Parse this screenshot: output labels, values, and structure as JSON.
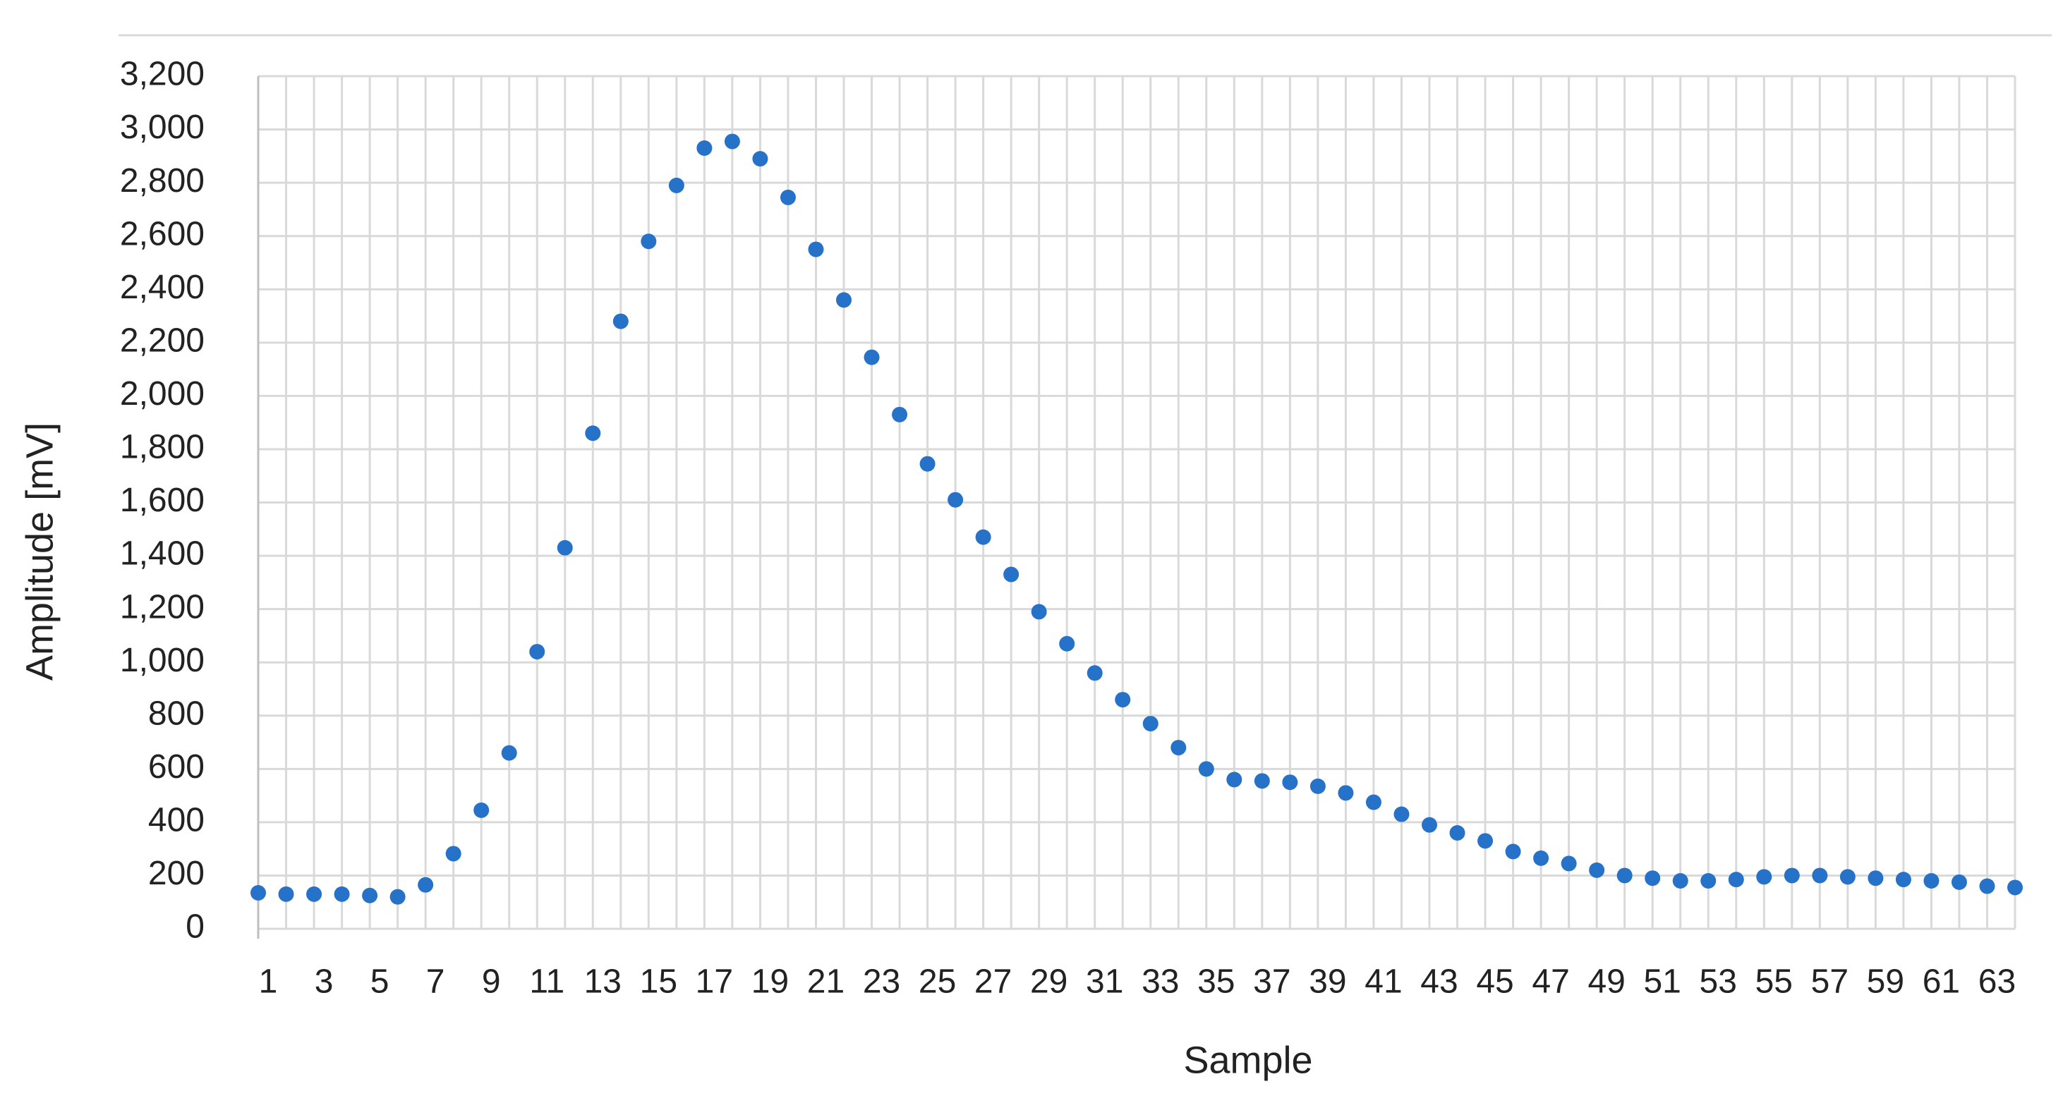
{
  "chart_data": {
    "type": "scatter",
    "x_label": "Sample",
    "y_label": "Amplitude [mV]",
    "categories": [
      "1",
      null,
      "3",
      null,
      "5",
      null,
      "7",
      null,
      "9",
      null,
      "11",
      null,
      "13",
      null,
      "15",
      null,
      "17",
      null,
      "19",
      null,
      "21",
      null,
      "23",
      null,
      "25",
      null,
      "27",
      null,
      "29",
      null,
      "31",
      null,
      "33",
      null,
      "35",
      null,
      "37",
      null,
      "39",
      null,
      "41",
      null,
      "43",
      null,
      "45",
      null,
      "47",
      null,
      "49",
      null,
      "51",
      null,
      "53",
      null,
      "55",
      null,
      "57",
      null,
      "59",
      null,
      "61",
      null,
      "63",
      null
    ],
    "series": [
      {
        "name": "Amplitude",
        "color": "#2672c8",
        "values": [
          135,
          130,
          130,
          130,
          125,
          120,
          165,
          282,
          445,
          660,
          1040,
          1430,
          1860,
          2280,
          2580,
          2790,
          2930,
          2955,
          2890,
          2745,
          2550,
          2360,
          2145,
          1930,
          1745,
          1610,
          1470,
          1330,
          1190,
          1070,
          960,
          860,
          770,
          680,
          600,
          560,
          555,
          550,
          535,
          510,
          475,
          430,
          390,
          360,
          330,
          290,
          265,
          245,
          220,
          200,
          190,
          180,
          180,
          185,
          195,
          200,
          200,
          195,
          190,
          185,
          180,
          175,
          160,
          155
        ]
      }
    ],
    "ylim": [
      0,
      3200
    ],
    "yticks": [
      0,
      200,
      400,
      600,
      800,
      {
        "value": 1000,
        "label": "1,000"
      },
      {
        "value": 1200,
        "label": "1,200"
      },
      {
        "value": 1400,
        "label": "1,400"
      },
      {
        "value": 1600,
        "label": "1,600"
      },
      {
        "value": 1800,
        "label": "1,800"
      },
      {
        "value": 2000,
        "label": "2,000"
      },
      {
        "value": 2200,
        "label": "2,200"
      },
      {
        "value": 2400,
        "label": "2,400"
      },
      {
        "value": 2600,
        "label": "2,600"
      },
      {
        "value": 2800,
        "label": "2,800"
      },
      {
        "value": 3000,
        "label": "3,000"
      },
      {
        "value": 3200,
        "label": "3,200"
      }
    ],
    "grid": true
  }
}
